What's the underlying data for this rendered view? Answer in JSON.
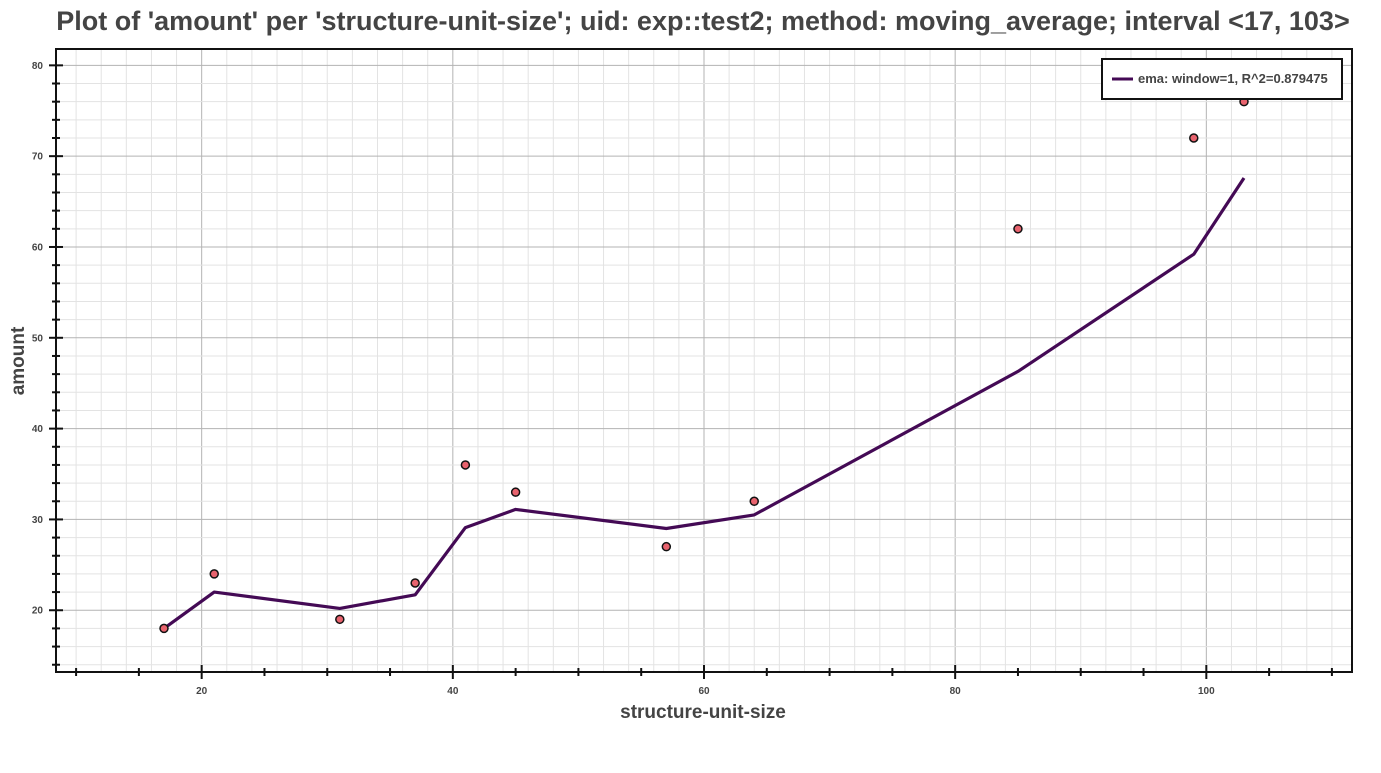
{
  "chart_data": {
    "type": "line",
    "title": "Plot of 'amount' per 'structure-unit-size'; uid: exp::test2; method: moving_average; interval <17, 103>",
    "xlabel": "structure-unit-size",
    "ylabel": "amount",
    "xlim": [
      8.4,
      111.6
    ],
    "ylim": [
      13.2,
      81.8
    ],
    "x_ticks": [
      20,
      40,
      60,
      80,
      100
    ],
    "y_ticks": [
      20,
      30,
      40,
      50,
      60,
      70,
      80
    ],
    "grid": true,
    "legend_position": "top-right",
    "series": [
      {
        "name": "ema: window=1, R^2=0.879475",
        "kind": "line",
        "color": "#440a55",
        "x": [
          17,
          21,
          31,
          37,
          41,
          45,
          57,
          64,
          85,
          99,
          103
        ],
        "y": [
          18.0,
          22.0,
          20.2,
          21.7,
          29.1,
          31.1,
          29.0,
          30.5,
          46.3,
          59.2,
          67.6
        ]
      },
      {
        "kind": "scatter",
        "color": "#e8636e",
        "edge_color": "#111111",
        "x": [
          17,
          21,
          31,
          37,
          41,
          45,
          57,
          64,
          85,
          99,
          103
        ],
        "y": [
          18,
          24,
          19,
          23,
          36,
          33,
          27,
          32,
          62,
          72,
          76
        ]
      }
    ]
  }
}
